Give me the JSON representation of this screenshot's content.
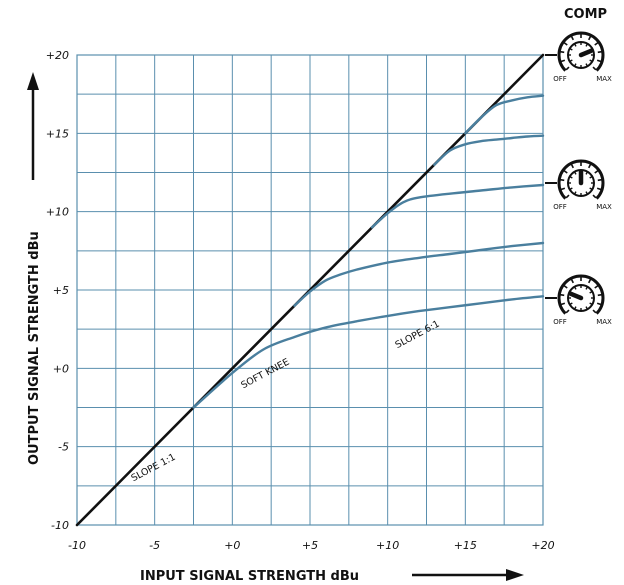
{
  "chart_data": {
    "type": "line",
    "xlabel": "INPUT SIGNAL STRENGTH dBu",
    "ylabel": "OUTPUT SIGNAL STRENGTH dBu",
    "xlim": [
      -10,
      20
    ],
    "ylim": [
      -10,
      20
    ],
    "x_tick_labels": [
      "-10",
      "-5",
      "+0",
      "+5",
      "+10",
      "+15",
      "+20"
    ],
    "y_tick_labels": [
      "-10",
      "-5",
      "+0",
      "+5",
      "+10",
      "+15",
      "+20"
    ],
    "grid": true,
    "series": [
      {
        "color": "#111111",
        "x": [
          -10,
          20
        ],
        "y": [
          -10,
          20
        ]
      },
      {
        "color": "#4a7f9e",
        "x": [
          -2.5,
          0,
          2,
          4,
          6,
          8,
          10,
          12,
          14,
          16,
          18,
          20
        ],
        "y": [
          -2.5,
          -0.3,
          1.2,
          2.0,
          2.6,
          3.0,
          3.35,
          3.65,
          3.9,
          4.15,
          4.4,
          4.6
        ]
      },
      {
        "color": "#4a7f9e",
        "x": [
          4,
          5,
          6,
          7,
          8,
          10,
          12,
          14,
          16,
          18,
          20
        ],
        "y": [
          4,
          4.9,
          5.6,
          6.0,
          6.3,
          6.75,
          7.05,
          7.3,
          7.55,
          7.8,
          8.0
        ]
      },
      {
        "color": "#4a7f9e",
        "x": [
          9,
          10,
          11,
          12,
          14,
          16,
          18,
          20
        ],
        "y": [
          9,
          9.9,
          10.6,
          10.9,
          11.15,
          11.35,
          11.55,
          11.7
        ]
      },
      {
        "color": "#4a7f9e",
        "x": [
          13,
          14,
          15,
          16,
          17,
          18,
          19,
          20
        ],
        "y": [
          13,
          13.9,
          14.3,
          14.5,
          14.6,
          14.7,
          14.8,
          14.85
        ]
      },
      {
        "color": "#4a7f9e",
        "x": [
          15,
          16,
          17,
          18,
          19,
          20
        ],
        "y": [
          15,
          16.0,
          16.8,
          17.1,
          17.3,
          17.4
        ]
      }
    ],
    "annotations": [
      {
        "text": "SLOPE 1:1",
        "x": -5,
        "y": -6.5
      },
      {
        "text": "SOFT KNEE",
        "x": 2.2,
        "y": -0.5
      },
      {
        "text": "SLOPE 6:1",
        "x": 12,
        "y": 2.0
      }
    ]
  },
  "comp_panel": {
    "title": "COMP",
    "knobs": [
      {
        "off_label": "OFF",
        "max_label": "MAX",
        "level": 0.75
      },
      {
        "off_label": "OFF",
        "max_label": "MAX",
        "level": 0.5
      },
      {
        "off_label": "OFF",
        "max_label": "MAX",
        "level": 0.25
      }
    ]
  },
  "colors": {
    "grid": "#5a8fae",
    "curve": "#4a7f9e",
    "reference": "#111111"
  }
}
